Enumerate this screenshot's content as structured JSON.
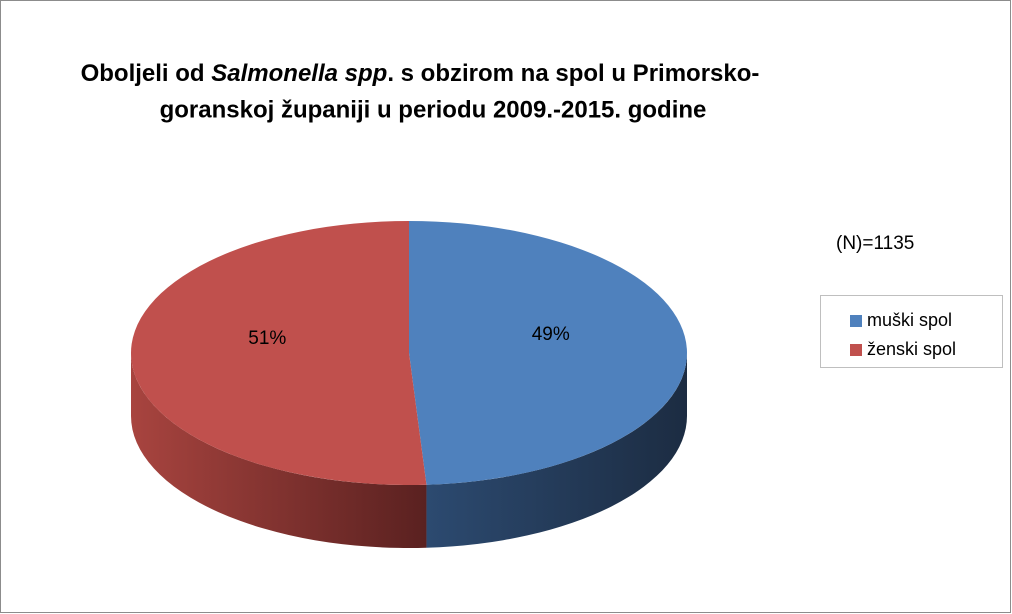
{
  "chart_data": {
    "type": "pie3d",
    "title_parts": [
      "Oboljeli od",
      "Salmonella spp",
      ". s obzirom na spol u Primorsko-",
      "goranskoj županiji u periodu 2009.-2015. godine"
    ],
    "annotation": "(N)=1135",
    "categories": [
      "muški spol",
      "ženski spol"
    ],
    "values": [
      49,
      51
    ],
    "value_labels": [
      "49%",
      "51%"
    ],
    "colors": [
      "#4f81bd",
      "#c0504d"
    ],
    "side_colors": [
      [
        "#2c4a70",
        "#1c2c42"
      ],
      [
        "#a8443f",
        "#5a2120"
      ]
    ],
    "legend": "right"
  }
}
